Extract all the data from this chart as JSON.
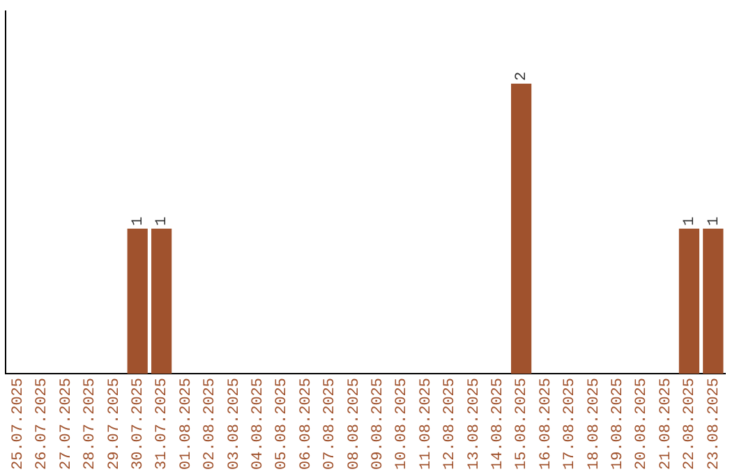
{
  "chart_data": {
    "type": "bar",
    "categories": [
      "25.07.2025",
      "26.07.2025",
      "27.07.2025",
      "28.07.2025",
      "29.07.2025",
      "30.07.2025",
      "31.07.2025",
      "01.08.2025",
      "02.08.2025",
      "03.08.2025",
      "04.08.2025",
      "05.08.2025",
      "06.08.2025",
      "07.08.2025",
      "08.08.2025",
      "09.08.2025",
      "10.08.2025",
      "11.08.2025",
      "12.08.2025",
      "13.08.2025",
      "14.08.2025",
      "15.08.2025",
      "16.08.2025",
      "17.08.2025",
      "18.08.2025",
      "19.08.2025",
      "20.08.2025",
      "21.08.2025",
      "22.08.2025",
      "23.08.2025"
    ],
    "values": [
      0,
      0,
      0,
      0,
      0,
      1,
      1,
      0,
      0,
      0,
      0,
      0,
      0,
      0,
      0,
      0,
      0,
      0,
      0,
      0,
      0,
      2,
      0,
      0,
      0,
      0,
      0,
      0,
      1,
      1
    ],
    "value_labels": [
      null,
      null,
      null,
      null,
      null,
      "1",
      "1",
      null,
      null,
      null,
      null,
      null,
      null,
      null,
      null,
      null,
      null,
      null,
      null,
      null,
      null,
      "2",
      null,
      null,
      null,
      null,
      null,
      null,
      "1",
      "1"
    ],
    "color": "#a0522d",
    "tick_labels": "x",
    "grid": false,
    "legend": false
  }
}
